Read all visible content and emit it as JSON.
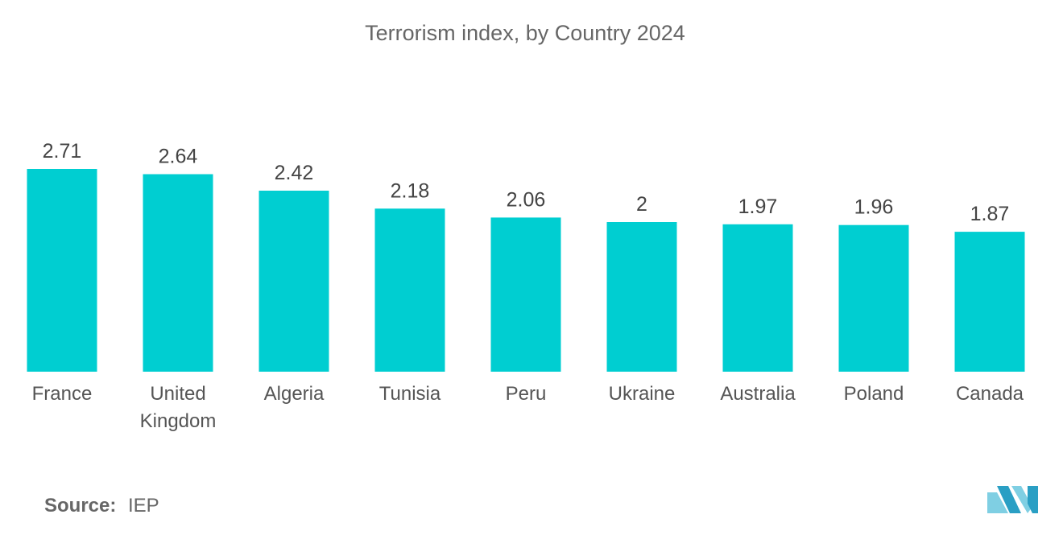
{
  "chart_data": {
    "type": "bar",
    "title": "Terrorism index, by Country 2024",
    "categories": [
      "France",
      "United Kingdom",
      "Algeria",
      "Tunisia",
      "Peru",
      "Ukraine",
      "Australia",
      "Poland",
      "Canada"
    ],
    "category_lines": [
      [
        "France"
      ],
      [
        "United",
        "Kingdom"
      ],
      [
        "Algeria"
      ],
      [
        "Tunisia"
      ],
      [
        "Peru"
      ],
      [
        "Ukraine"
      ],
      [
        "Australia"
      ],
      [
        "Poland"
      ],
      [
        "Canada"
      ]
    ],
    "value_labels": [
      "2.71",
      "2.64",
      "2.42",
      "2.18",
      "2.06",
      "2",
      "1.97",
      "1.96",
      "1.87"
    ],
    "values": [
      2.71,
      2.64,
      2.42,
      2.18,
      2.06,
      2.0,
      1.97,
      1.96,
      1.87
    ],
    "xlabel": "",
    "ylabel": "",
    "ylim": [
      0,
      2.71
    ],
    "grid": false,
    "bar_color": "#00CED1"
  },
  "source": {
    "label": "Source:",
    "value": "IEP"
  },
  "logo": {
    "name": "mordor-intelligence-logo-icon",
    "color_light": "#7FCFE3",
    "color_dark": "#2A9FC4"
  }
}
